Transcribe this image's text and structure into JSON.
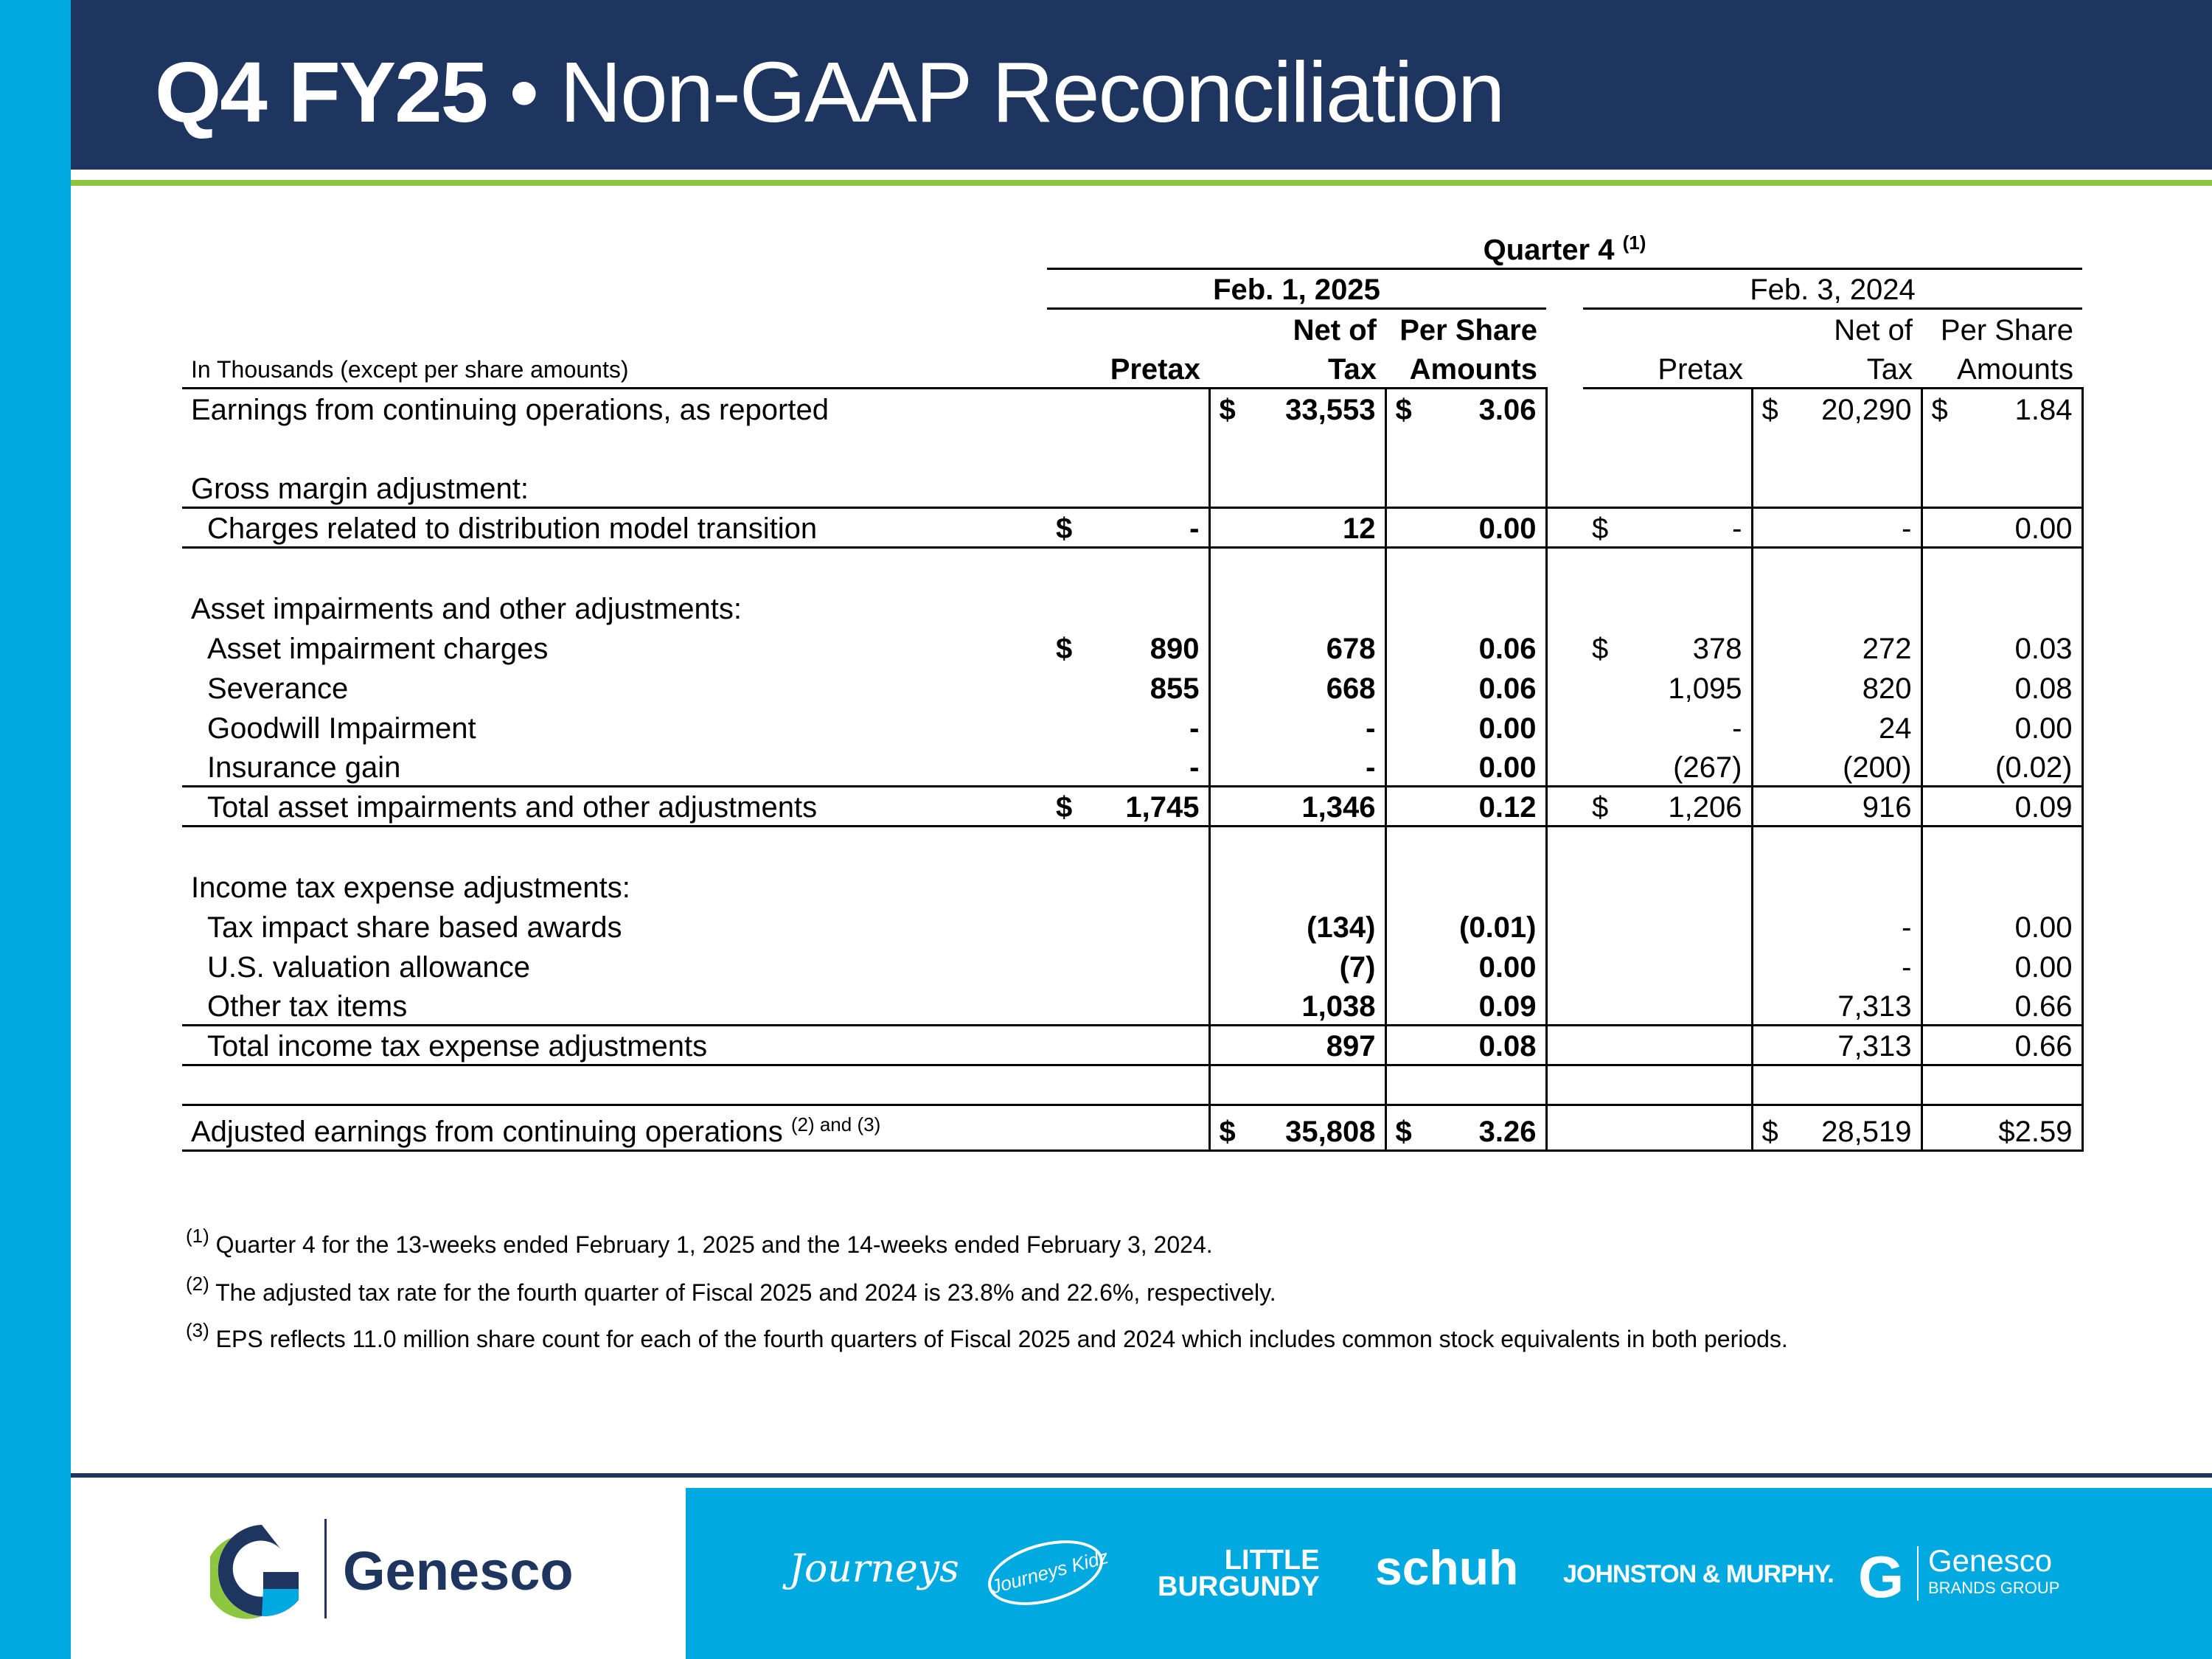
{
  "title": {
    "bold": "Q4 FY25",
    "rest": " • Non-GAAP Reconciliation"
  },
  "table": {
    "period_header": "Quarter 4",
    "period_note": "(1)",
    "date_current": "Feb. 1, 2025",
    "date_prior": "Feb. 3, 2024",
    "units_label": "In Thousands (except per share amounts)",
    "col_top": [
      "",
      "Net of",
      "Per Share",
      "",
      "Net of",
      "Per Share"
    ],
    "col_bottom": [
      "Pretax",
      "Tax",
      "Amounts",
      "Pretax",
      "Tax",
      "Amounts"
    ],
    "rows": [
      {
        "label": "Earnings from continuing operations, as reported",
        "indent": false,
        "cells": [
          [
            "",
            ""
          ],
          [
            "$",
            "33,553"
          ],
          [
            "$",
            "3.06"
          ],
          [
            "",
            ""
          ],
          [
            "$",
            "20,290"
          ],
          [
            "$",
            "1.84"
          ]
        ]
      },
      {
        "label": "",
        "indent": false,
        "cells": []
      },
      {
        "label": "Gross margin adjustment:",
        "indent": false,
        "cells": [],
        "line_below": true
      },
      {
        "label": "Charges related to distribution model transition",
        "indent": true,
        "cells": [
          [
            "$",
            "-"
          ],
          [
            "",
            "12"
          ],
          [
            "",
            "0.00"
          ],
          [
            "$",
            "-"
          ],
          [
            "",
            "-"
          ],
          [
            "",
            "0.00"
          ]
        ],
        "line_below": true
      },
      {
        "label": "",
        "indent": false,
        "cells": []
      },
      {
        "label": "Asset impairments and other adjustments:",
        "indent": false,
        "cells": []
      },
      {
        "label": "Asset impairment charges",
        "indent": true,
        "cells": [
          [
            "$",
            "890"
          ],
          [
            "",
            "678"
          ],
          [
            "",
            "0.06"
          ],
          [
            "$",
            "378"
          ],
          [
            "",
            "272"
          ],
          [
            "",
            "0.03"
          ]
        ]
      },
      {
        "label": "Severance",
        "indent": true,
        "cells": [
          [
            "",
            "855"
          ],
          [
            "",
            "668"
          ],
          [
            "",
            "0.06"
          ],
          [
            "",
            "1,095"
          ],
          [
            "",
            "820"
          ],
          [
            "",
            "0.08"
          ]
        ]
      },
      {
        "label": "Goodwill Impairment",
        "indent": true,
        "cells": [
          [
            "",
            "-"
          ],
          [
            "",
            "-"
          ],
          [
            "",
            "0.00"
          ],
          [
            "",
            "-"
          ],
          [
            "",
            "24"
          ],
          [
            "",
            "0.00"
          ]
        ]
      },
      {
        "label": "Insurance gain",
        "indent": true,
        "cells": [
          [
            "",
            "-"
          ],
          [
            "",
            "-"
          ],
          [
            "",
            "0.00"
          ],
          [
            "",
            "(267)"
          ],
          [
            "",
            "(200)"
          ],
          [
            "",
            "(0.02)"
          ]
        ],
        "line_below": true
      },
      {
        "label": "Total asset impairments and other adjustments",
        "indent": true,
        "cells": [
          [
            "$",
            "1,745"
          ],
          [
            "",
            "1,346"
          ],
          [
            "",
            "0.12"
          ],
          [
            "$",
            "1,206"
          ],
          [
            "",
            "916"
          ],
          [
            "",
            "0.09"
          ]
        ],
        "line_below": true
      },
      {
        "label": "",
        "indent": false,
        "cells": []
      },
      {
        "label": "Income tax expense adjustments:",
        "indent": false,
        "cells": []
      },
      {
        "label": "Tax impact share based awards",
        "indent": true,
        "cells": [
          [
            "",
            ""
          ],
          [
            "",
            "(134)"
          ],
          [
            "",
            "(0.01)"
          ],
          [
            "",
            ""
          ],
          [
            "",
            "-"
          ],
          [
            "",
            "0.00"
          ]
        ]
      },
      {
        "label": "U.S. valuation allowance",
        "indent": true,
        "cells": [
          [
            "",
            ""
          ],
          [
            "",
            "(7)"
          ],
          [
            "",
            "0.00"
          ],
          [
            "",
            ""
          ],
          [
            "",
            "-"
          ],
          [
            "",
            "0.00"
          ]
        ]
      },
      {
        "label": "Other tax items",
        "indent": true,
        "cells": [
          [
            "",
            ""
          ],
          [
            "",
            "1,038"
          ],
          [
            "",
            "0.09"
          ],
          [
            "",
            ""
          ],
          [
            "",
            "7,313"
          ],
          [
            "",
            "0.66"
          ]
        ],
        "line_below": true
      },
      {
        "label": "Total income tax expense adjustments",
        "indent": true,
        "cells": [
          [
            "",
            ""
          ],
          [
            "",
            "897"
          ],
          [
            "",
            "0.08"
          ],
          [
            "",
            ""
          ],
          [
            "",
            "7,313"
          ],
          [
            "",
            "0.66"
          ]
        ],
        "line_below": true
      },
      {
        "label": "",
        "indent": false,
        "cells": [],
        "line_below": true
      },
      {
        "label": "Adjusted earnings from continuing operations",
        "note": "(2) and (3)",
        "indent": false,
        "cells": [
          [
            "",
            ""
          ],
          [
            "$",
            "35,808"
          ],
          [
            "$",
            "3.26"
          ],
          [
            "",
            ""
          ],
          [
            "$",
            "28,519"
          ],
          [
            "",
            "$2.59"
          ]
        ],
        "line_below": true
      }
    ]
  },
  "footnotes": [
    {
      "mark": "(1)",
      "text": "Quarter 4 for the 13-weeks ended February 1, 2025 and the 14-weeks ended February 3, 2024."
    },
    {
      "mark": "(2)",
      "text": "The adjusted tax rate for the fourth quarter of Fiscal 2025 and 2024 is 23.8% and 22.6%, respectively."
    },
    {
      "mark": "(3)",
      "text": "EPS reflects 11.0 million share count for each of the fourth quarters of Fiscal 2025 and 2024 which includes common stock equivalents in both periods."
    }
  ],
  "footer": {
    "company": "Genesco",
    "brands": [
      "Journeys",
      "Journeys Kidz",
      "LITTLE",
      "BURGUNDY",
      "schuh",
      "JOHNSTON & MURPHY.",
      "Genesco",
      "BRANDS GROUP"
    ]
  },
  "colors": {
    "navy": "#1e3560",
    "cyan": "#00a9e0",
    "green": "#8dc63f"
  }
}
